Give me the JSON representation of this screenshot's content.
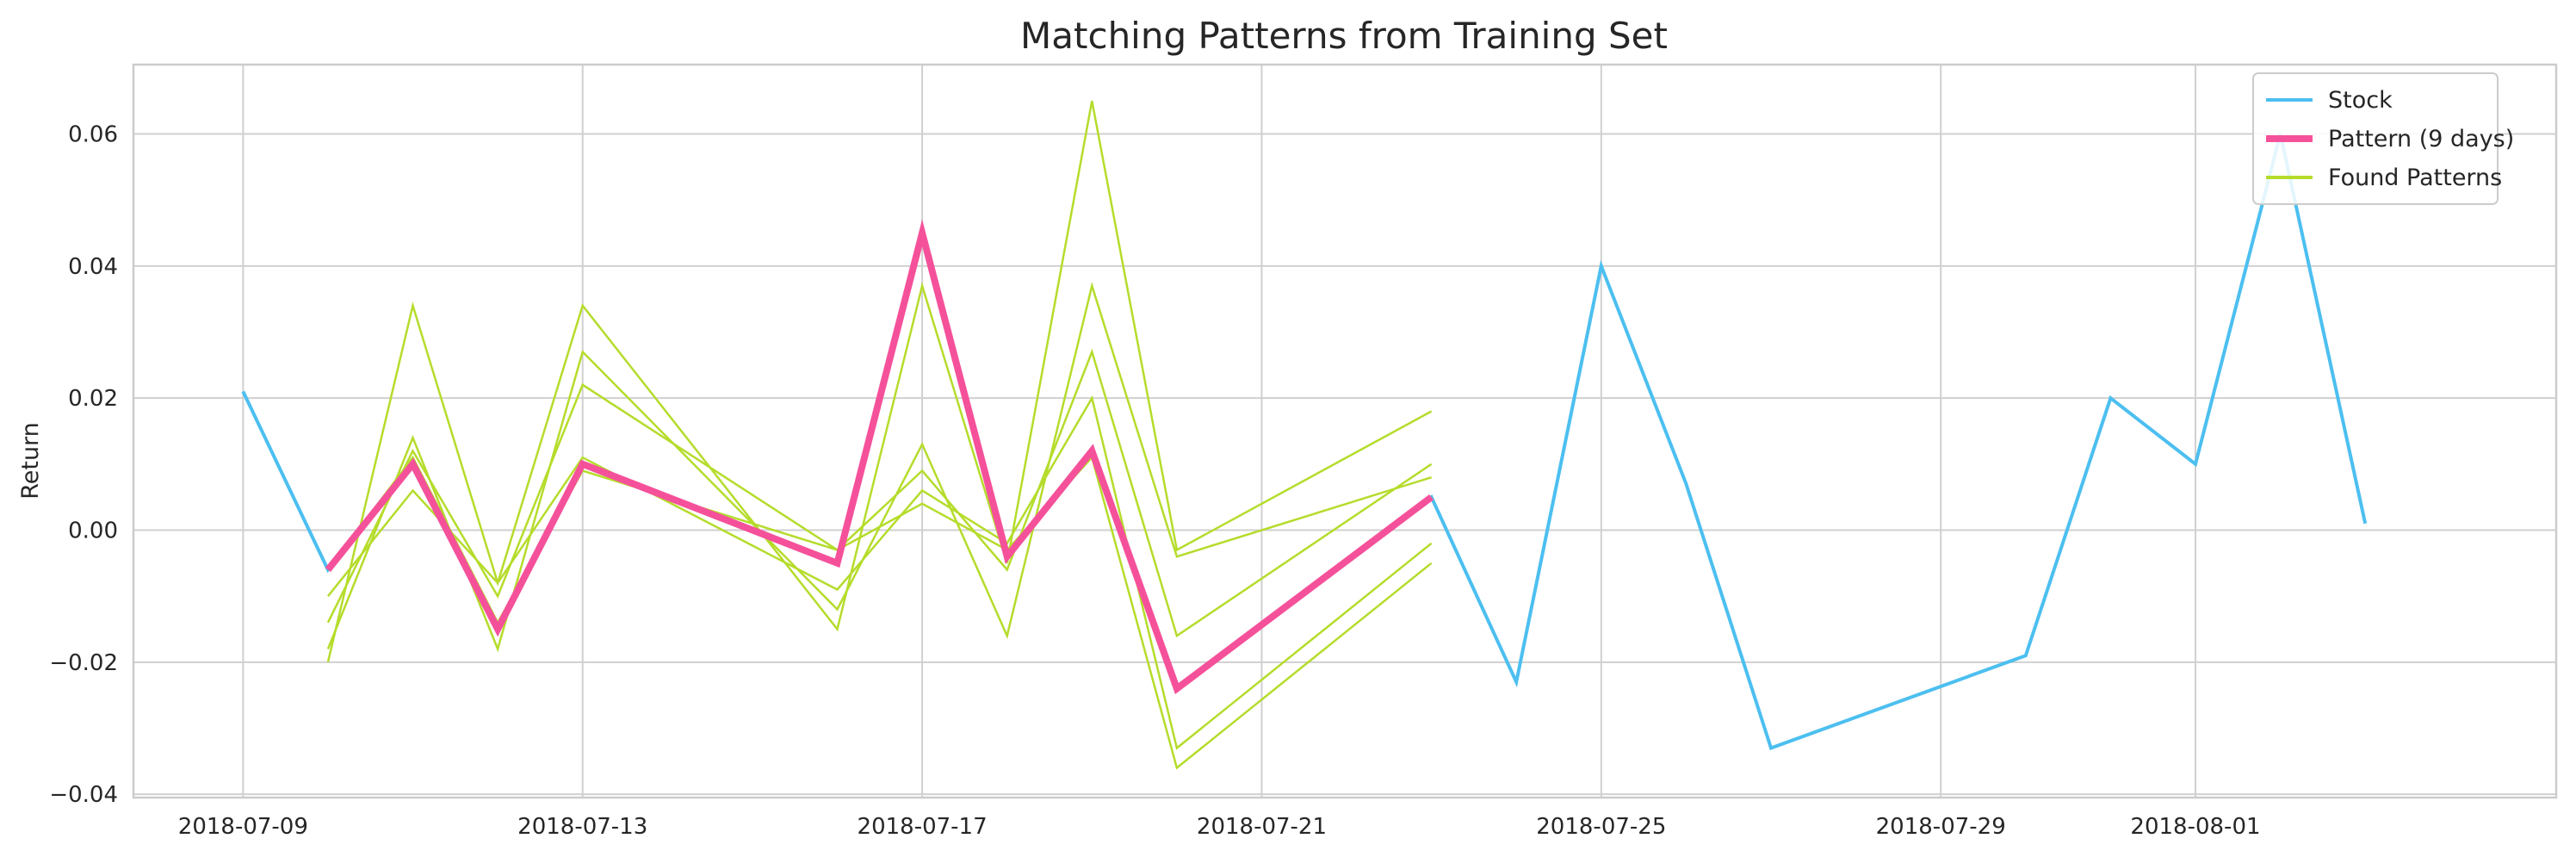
{
  "chart_data": {
    "type": "line",
    "title": "Matching Patterns from Training Set",
    "xlabel": "",
    "ylabel": "Return",
    "xlim": [
      "2018-07-07 17:00",
      "2018-08-05 06:00"
    ],
    "ylim": [
      -0.0405,
      0.0705
    ],
    "xticks": [
      "2018-07-09",
      "2018-07-13",
      "2018-07-17",
      "2018-07-21",
      "2018-07-25",
      "2018-07-29",
      "2018-08-01"
    ],
    "yticks": [
      -0.04,
      -0.02,
      0.0,
      0.02,
      0.04,
      0.06
    ],
    "ytick_labels": [
      "−0.04",
      "−0.02",
      "0.00",
      "0.02",
      "0.04",
      "0.06"
    ],
    "grid": true,
    "legend_position": "top-right",
    "legend": [
      "Stock",
      "Pattern (9 days)",
      "Found Patterns"
    ],
    "colors": {
      "stock": "#4cbff0",
      "pattern": "#f5519a",
      "found": "#b5dc2b",
      "grid": "#d0d0d0",
      "frame": "#cccccc"
    },
    "stock": {
      "name": "Stock",
      "x": [
        "2018-07-09",
        "2018-07-10",
        "2018-07-11",
        "2018-07-12",
        "2018-07-13",
        "2018-07-16",
        "2018-07-17",
        "2018-07-18",
        "2018-07-19",
        "2018-07-20",
        "2018-07-23",
        "2018-07-24",
        "2018-07-25",
        "2018-07-26",
        "2018-07-27",
        "2018-07-30",
        "2018-07-31",
        "2018-08-01",
        "2018-08-02",
        "2018-08-03"
      ],
      "y": [
        0.021,
        -0.006,
        0.01,
        -0.015,
        0.01,
        -0.005,
        0.045,
        -0.004,
        0.012,
        -0.024,
        0.005,
        -0.023,
        0.04,
        0.007,
        -0.033,
        -0.019,
        0.02,
        0.01,
        0.06,
        0.001
      ]
    },
    "pattern": {
      "name": "Pattern (9 days)",
      "x": [
        "2018-07-10",
        "2018-07-11",
        "2018-07-12",
        "2018-07-13",
        "2018-07-16",
        "2018-07-17",
        "2018-07-18",
        "2018-07-19",
        "2018-07-20",
        "2018-07-23"
      ],
      "y": [
        -0.006,
        0.01,
        -0.015,
        0.01,
        -0.005,
        0.045,
        -0.004,
        0.012,
        -0.024,
        0.005
      ]
    },
    "found": {
      "name": "Found Patterns",
      "x": [
        "2018-07-10",
        "2018-07-11",
        "2018-07-12",
        "2018-07-13",
        "2018-07-16",
        "2018-07-17",
        "2018-07-18",
        "2018-07-19",
        "2018-07-20",
        "2018-07-23"
      ],
      "series": [
        [
          -0.02,
          0.034,
          -0.008,
          0.034,
          -0.015,
          0.037,
          -0.005,
          0.065,
          -0.003,
          0.018
        ],
        [
          -0.018,
          0.014,
          -0.018,
          0.027,
          -0.012,
          0.013,
          -0.016,
          0.037,
          -0.004,
          0.008
        ],
        [
          -0.014,
          0.012,
          -0.01,
          0.022,
          -0.003,
          0.009,
          -0.006,
          0.027,
          -0.016,
          0.01
        ],
        [
          -0.01,
          0.006,
          -0.008,
          0.011,
          -0.009,
          0.006,
          -0.002,
          0.02,
          -0.033,
          -0.002
        ],
        [
          -0.006,
          0.011,
          -0.014,
          0.009,
          -0.003,
          0.004,
          -0.003,
          0.011,
          -0.036,
          -0.005
        ]
      ]
    }
  }
}
